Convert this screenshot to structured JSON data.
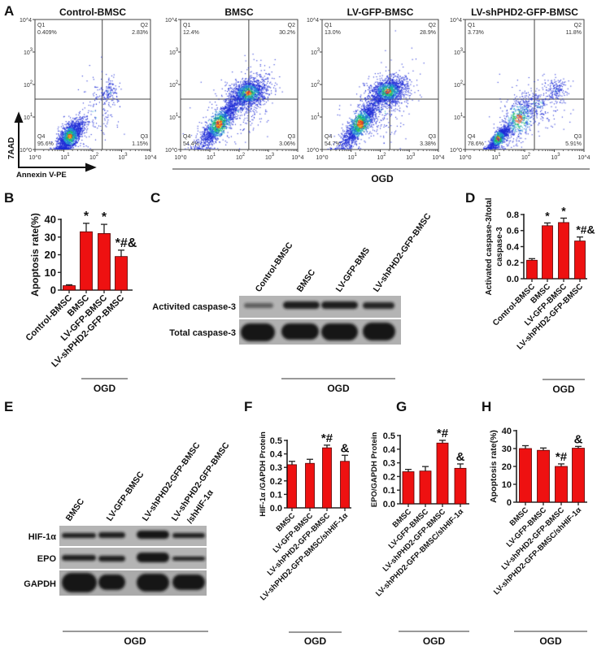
{
  "panel_labels": {
    "a": "A",
    "b": "B",
    "c": "C",
    "d": "D",
    "e": "E",
    "f": "F",
    "g": "G",
    "h": "H"
  },
  "panel_a": {
    "xlabel": "Annexin V-PE",
    "ylabel": "7AAD",
    "group_label": "OGD",
    "tick_base": "10",
    "tick_exponents": [
      "0",
      "1",
      "2",
      "3",
      "4"
    ]
  },
  "panel_c": {
    "lanes": [
      "Control-BMSC",
      "BMSC",
      "LV-GFP-BMS",
      "LV-shPHD2-GFP-BMSC"
    ],
    "rows": [
      "Activited caspase-3",
      "Total caspase-3"
    ],
    "group_label": "OGD"
  },
  "panel_e": {
    "lanes": [
      "BMSC",
      "LV-GFP-BMSC",
      "LV-shPHD2-GFP-BMSC",
      "LV-shPHD2-GFP-BMSC",
      "/shHIF-1α"
    ],
    "rows": [
      "HIF-1α",
      "EPO",
      "GAPDH"
    ],
    "group_label": "OGD"
  },
  "colors": {
    "bar": "#ee1111",
    "bar_edge": "#550000",
    "axis": "#222222",
    "blot_bg": "#b4b4b4",
    "band": "#161616"
  },
  "chart_data": [
    {
      "panel": "A",
      "type": "scatter",
      "scale": "log",
      "xlim": [
        "10^0",
        "10^4"
      ],
      "ylim": [
        "10^0",
        "10^4"
      ],
      "title": "Control-BMSC",
      "quadrants": [
        {
          "name": "Q1",
          "value": "0.409%"
        },
        {
          "name": "Q2",
          "value": "2.83%"
        },
        {
          "name": "Q3",
          "value": "1.15%"
        },
        {
          "name": "Q4",
          "value": "95.6%"
        }
      ]
    },
    {
      "panel": "A",
      "type": "scatter",
      "scale": "log",
      "xlim": [
        "10^0",
        "10^4"
      ],
      "ylim": [
        "10^0",
        "10^4"
      ],
      "title": "BMSC",
      "quadrants": [
        {
          "name": "Q1",
          "value": "12.4%"
        },
        {
          "name": "Q2",
          "value": "30.2%"
        },
        {
          "name": "Q3",
          "value": "3.06%"
        },
        {
          "name": "Q4",
          "value": "54.4%"
        }
      ]
    },
    {
      "panel": "A",
      "type": "scatter",
      "scale": "log",
      "xlim": [
        "10^0",
        "10^4"
      ],
      "ylim": [
        "10^0",
        "10^4"
      ],
      "title": "LV-GFP-BMSC",
      "quadrants": [
        {
          "name": "Q1",
          "value": "13.0%"
        },
        {
          "name": "Q2",
          "value": "28.9%"
        },
        {
          "name": "Q3",
          "value": "3.38%"
        },
        {
          "name": "Q4",
          "value": "54.7%"
        }
      ]
    },
    {
      "panel": "A",
      "type": "scatter",
      "scale": "log",
      "xlim": [
        "10^0",
        "10^4"
      ],
      "ylim": [
        "10^0",
        "10^4"
      ],
      "title": "LV-shPHD2-GFP-BMSC",
      "quadrants": [
        {
          "name": "Q1",
          "value": "3.73%"
        },
        {
          "name": "Q2",
          "value": "11.8%"
        },
        {
          "name": "Q3",
          "value": "5.91%"
        },
        {
          "name": "Q4",
          "value": "78.6%"
        }
      ]
    },
    {
      "panel": "B",
      "type": "bar",
      "categories": [
        "Control-BMSC",
        "BMSC",
        "LV-GFP-BMSC",
        "LV-shPHD2-GFP-BMSC"
      ],
      "values": [
        2.5,
        33,
        32,
        19
      ],
      "errors": [
        0.5,
        4.8,
        5.2,
        3.6
      ],
      "annotations": [
        "",
        "*",
        "*",
        "*#&"
      ],
      "ylabel": [
        "Apoptosis rate(%)"
      ],
      "y_ticks": [
        "0",
        "10",
        "20",
        "30",
        "40"
      ],
      "ylim": [
        0,
        40
      ],
      "group_label": "OGD"
    },
    {
      "panel": "D",
      "type": "bar",
      "categories": [
        "Control-BMSC",
        "BMSC",
        "LV-GFP-BMSC",
        "LV-shPHD2-GFP-BMSC"
      ],
      "values": [
        0.23,
        0.66,
        0.7,
        0.47
      ],
      "errors": [
        0.02,
        0.035,
        0.055,
        0.05
      ],
      "annotations": [
        "",
        "*",
        "*",
        "*#&"
      ],
      "ylabel": [
        "Activated caspase-3/total",
        "caspase-3"
      ],
      "y_ticks": [
        "0.0",
        "0.2",
        "0.4",
        "0.6",
        "0.8"
      ],
      "ylim": [
        0,
        0.8
      ],
      "group_label": "OGD"
    },
    {
      "panel": "F",
      "type": "bar",
      "categories": [
        "BMSC",
        "LV-GFP-BMSC",
        "LV-shPHD2-GFP-BMSC",
        "LV-shPHD2-GFP-BMSC/shHIF-1α"
      ],
      "values": [
        0.32,
        0.33,
        0.445,
        0.345
      ],
      "errors": [
        0.025,
        0.03,
        0.02,
        0.045
      ],
      "annotations": [
        "",
        "",
        "*#",
        "&"
      ],
      "ylabel": [
        "HIF-1α /GAPDH Protein"
      ],
      "y_ticks": [
        "0.0",
        "0.1",
        "0.2",
        "0.3",
        "0.4",
        "0.5"
      ],
      "ylim": [
        0,
        0.5
      ],
      "group_label": "OGD"
    },
    {
      "panel": "G",
      "type": "bar",
      "categories": [
        "BMSC",
        "LV-GFP-BMSC",
        "LV-shPHD2-GFP-BMSC",
        "LV-shPHD2-GFP-BMSC/shHIF-1α"
      ],
      "values": [
        0.235,
        0.24,
        0.445,
        0.26
      ],
      "errors": [
        0.017,
        0.033,
        0.02,
        0.032
      ],
      "annotations": [
        "",
        "",
        "*#",
        "&"
      ],
      "ylabel": [
        "EPO/GAPDH Protein"
      ],
      "y_ticks": [
        "0.0",
        "0.1",
        "0.2",
        "0.3",
        "0.4",
        "0.5"
      ],
      "ylim": [
        0,
        0.5
      ],
      "group_label": "OGD"
    },
    {
      "panel": "H",
      "type": "bar",
      "categories": [
        "BMSC",
        "LV-GFP-BMSC",
        "LV-shPHD2-GFP-BMSC",
        "LV-shPHD2-GFP-BMSC/shHIF-1α"
      ],
      "values": [
        30,
        29,
        20,
        30.2
      ],
      "errors": [
        1.6,
        1.3,
        1.4,
        1.0
      ],
      "annotations": [
        "",
        "",
        "*#",
        "&"
      ],
      "ylabel": [
        "Apoptosis rate(%)"
      ],
      "y_ticks": [
        "0",
        "10",
        "20",
        "30",
        "40"
      ],
      "ylim": [
        0,
        40
      ],
      "group_label": "OGD"
    }
  ]
}
